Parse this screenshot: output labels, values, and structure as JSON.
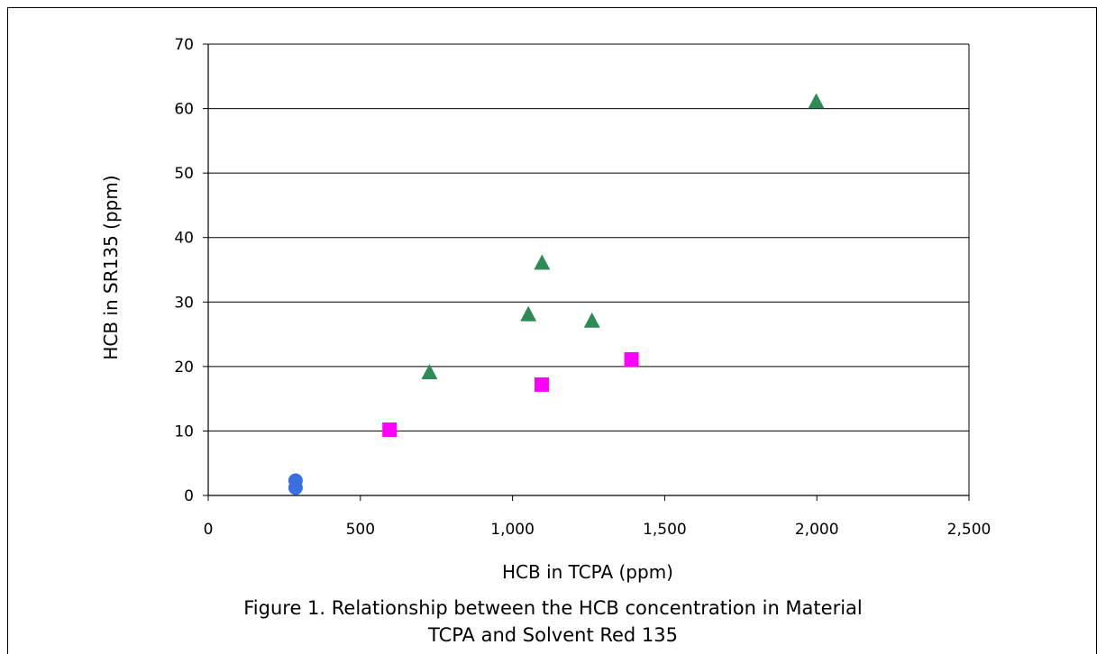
{
  "chart_data": {
    "type": "scatter",
    "xlabel": "HCB in TCPA (ppm)",
    "ylabel": "HCB in SR135 (ppm)",
    "xlim": [
      0,
      2500
    ],
    "ylim": [
      0,
      70
    ],
    "x_ticks": [
      "0",
      "500",
      "1,000",
      "1,500",
      "2,000",
      "2,500"
    ],
    "y_ticks": [
      "0",
      "10",
      "20",
      "30",
      "40",
      "50",
      "60",
      "70"
    ],
    "grid": "horizontal",
    "series": [
      {
        "marker": "circle",
        "color": "#3a6fe0",
        "points": [
          [
            287,
            2.3
          ],
          [
            287,
            1.2
          ]
        ]
      },
      {
        "marker": "square",
        "color": "#ff00ff",
        "points": [
          [
            596,
            10.2
          ],
          [
            1096,
            17.2
          ],
          [
            1391,
            21.1
          ]
        ]
      },
      {
        "marker": "triangle",
        "color": "#2e8b57",
        "points": [
          [
            727,
            19
          ],
          [
            1052,
            28
          ],
          [
            1097,
            36
          ],
          [
            1261,
            27
          ],
          [
            1998,
            61
          ]
        ]
      }
    ]
  },
  "caption": {
    "line1": "Figure 1. Relationship between the HCB concentration in Material",
    "line2": "TCPA and Solvent Red 135"
  }
}
